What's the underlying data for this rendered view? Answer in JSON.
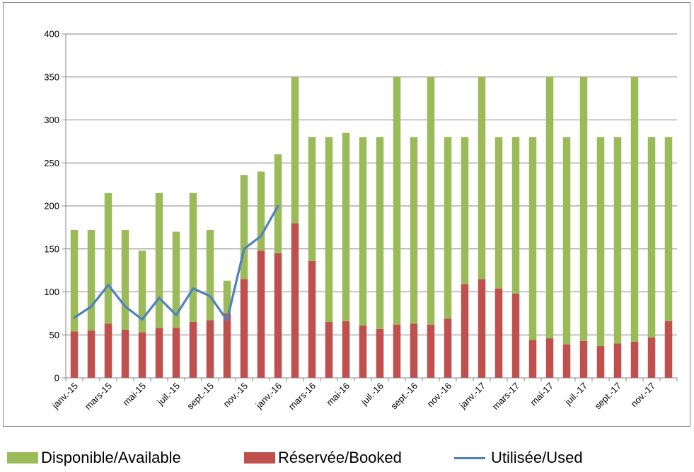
{
  "chart_data": {
    "type": "bar",
    "stacked": true,
    "categories": [
      "janv.-15",
      "févr.-15",
      "mars-15",
      "avr.-15",
      "mai-15",
      "juin-15",
      "juil.-15",
      "août-15",
      "sept.-15",
      "oct.-15",
      "nov.-15",
      "déc.-15",
      "janv.-16",
      "févr.-16",
      "mars-16",
      "avr.-16",
      "mai-16",
      "juin-16",
      "juil.-16",
      "août-16",
      "sept.-16",
      "oct.-16",
      "nov.-16",
      "déc.-16",
      "janv.-17",
      "févr.-17",
      "mars-17",
      "avr.-17",
      "mai-17",
      "juin-17",
      "juil.-17",
      "août-17",
      "sept.-17",
      "oct.-17",
      "nov.-17",
      "déc.-17"
    ],
    "shown_tick_labels": [
      "janv.-15",
      "mars-15",
      "mai-15",
      "juil.-15",
      "sept.-15",
      "nov.-15",
      "janv.-16",
      "mars-16",
      "mai-16",
      "juil.-16",
      "sept.-16",
      "nov.-16",
      "janv.-17",
      "mars-17",
      "mai-17",
      "juil.-17",
      "sept.-17",
      "nov.-17"
    ],
    "series": [
      {
        "name": "Réservée/Booked",
        "kind": "bar",
        "color": "#c0504d",
        "values": [
          54,
          55,
          63,
          56,
          53,
          58,
          58,
          65,
          67,
          75,
          115,
          148,
          145,
          180,
          136,
          65,
          66,
          61,
          57,
          62,
          63,
          62,
          69,
          109,
          115,
          104,
          98,
          44,
          46,
          39,
          43,
          37,
          40,
          42,
          47,
          66
        ]
      },
      {
        "name": "Disponible/Available",
        "kind": "bar",
        "color": "#9bbb59",
        "values": [
          118,
          117,
          152,
          116,
          95,
          157,
          112,
          150,
          105,
          38,
          121,
          92,
          115,
          170,
          144,
          215,
          219,
          219,
          223,
          288,
          217,
          288,
          211,
          171,
          235,
          176,
          182,
          236,
          304,
          241,
          307,
          243,
          240,
          308,
          233,
          214
        ]
      },
      {
        "name": "Utilisée/Used",
        "kind": "line",
        "color": "#4f81bd",
        "values": [
          70,
          83,
          108,
          83,
          68,
          93,
          73,
          104,
          95,
          67,
          150,
          165,
          200,
          null,
          null,
          null,
          null,
          null,
          null,
          null,
          null,
          null,
          null,
          null,
          null,
          null,
          null,
          null,
          null,
          null,
          null,
          null,
          null,
          null,
          null,
          null
        ]
      }
    ],
    "yticks": [
      "0",
      "50",
      "100",
      "150",
      "200",
      "250",
      "300",
      "350",
      "400"
    ],
    "ylim": [
      0,
      400
    ],
    "grid": true,
    "legend_position": "bottom",
    "title": "",
    "xlabel": "",
    "ylabel": ""
  }
}
